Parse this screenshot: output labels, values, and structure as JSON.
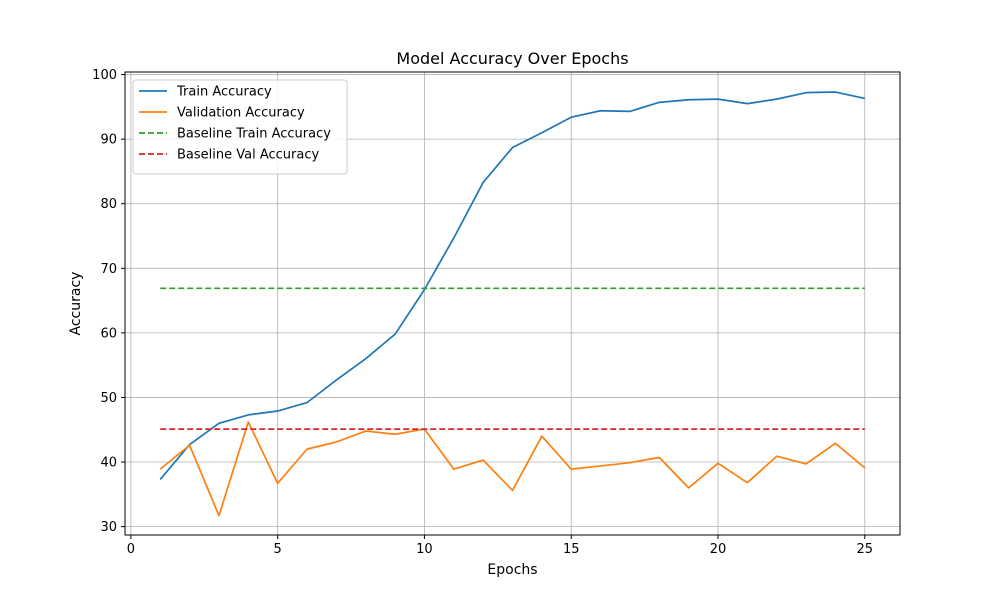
{
  "chart_data": {
    "type": "line",
    "title": "Model Accuracy Over Epochs",
    "xlabel": "Epochs",
    "ylabel": "Accuracy",
    "xlim": [
      -0.2,
      26.2
    ],
    "ylim": [
      28.7,
      100.4
    ],
    "xticks": [
      0,
      5,
      10,
      15,
      20,
      25
    ],
    "yticks": [
      30,
      40,
      50,
      60,
      70,
      80,
      90,
      100
    ],
    "grid": true,
    "legend_position": "top-left",
    "x": [
      1,
      2,
      3,
      4,
      5,
      6,
      7,
      8,
      9,
      10,
      11,
      12,
      13,
      14,
      15,
      16,
      17,
      18,
      19,
      20,
      21,
      22,
      23,
      24,
      25
    ],
    "series": [
      {
        "name": "Train Accuracy",
        "color": "#1f77b4",
        "style": "solid",
        "values": [
          37.3,
          42.7,
          46.0,
          47.3,
          47.9,
          49.2,
          52.7,
          56.0,
          59.8,
          66.7,
          74.7,
          83.3,
          88.7,
          91.0,
          93.4,
          94.4,
          94.3,
          95.7,
          96.1,
          96.2,
          95.5,
          96.2,
          97.2,
          97.3,
          96.3
        ]
      },
      {
        "name": "Validation Accuracy",
        "color": "#ff7f0e",
        "style": "solid",
        "values": [
          38.9,
          42.6,
          31.7,
          46.2,
          36.7,
          42.0,
          43.1,
          44.8,
          44.3,
          45.1,
          38.9,
          40.3,
          35.6,
          44.0,
          38.9,
          39.4,
          39.9,
          40.7,
          36.0,
          39.8,
          36.8,
          40.9,
          39.7,
          42.9,
          39.1
        ]
      },
      {
        "name": "Baseline Train Accuracy",
        "color": "#2ca02c",
        "style": "dashed",
        "values": [
          66.9,
          66.9,
          66.9,
          66.9,
          66.9,
          66.9,
          66.9,
          66.9,
          66.9,
          66.9,
          66.9,
          66.9,
          66.9,
          66.9,
          66.9,
          66.9,
          66.9,
          66.9,
          66.9,
          66.9,
          66.9,
          66.9,
          66.9,
          66.9,
          66.9
        ]
      },
      {
        "name": "Baseline Val Accuracy",
        "color": "#d62728",
        "style": "dashed",
        "values": [
          45.1,
          45.1,
          45.1,
          45.1,
          45.1,
          45.1,
          45.1,
          45.1,
          45.1,
          45.1,
          45.1,
          45.1,
          45.1,
          45.1,
          45.1,
          45.1,
          45.1,
          45.1,
          45.1,
          45.1,
          45.1,
          45.1,
          45.1,
          45.1,
          45.1
        ]
      }
    ]
  }
}
